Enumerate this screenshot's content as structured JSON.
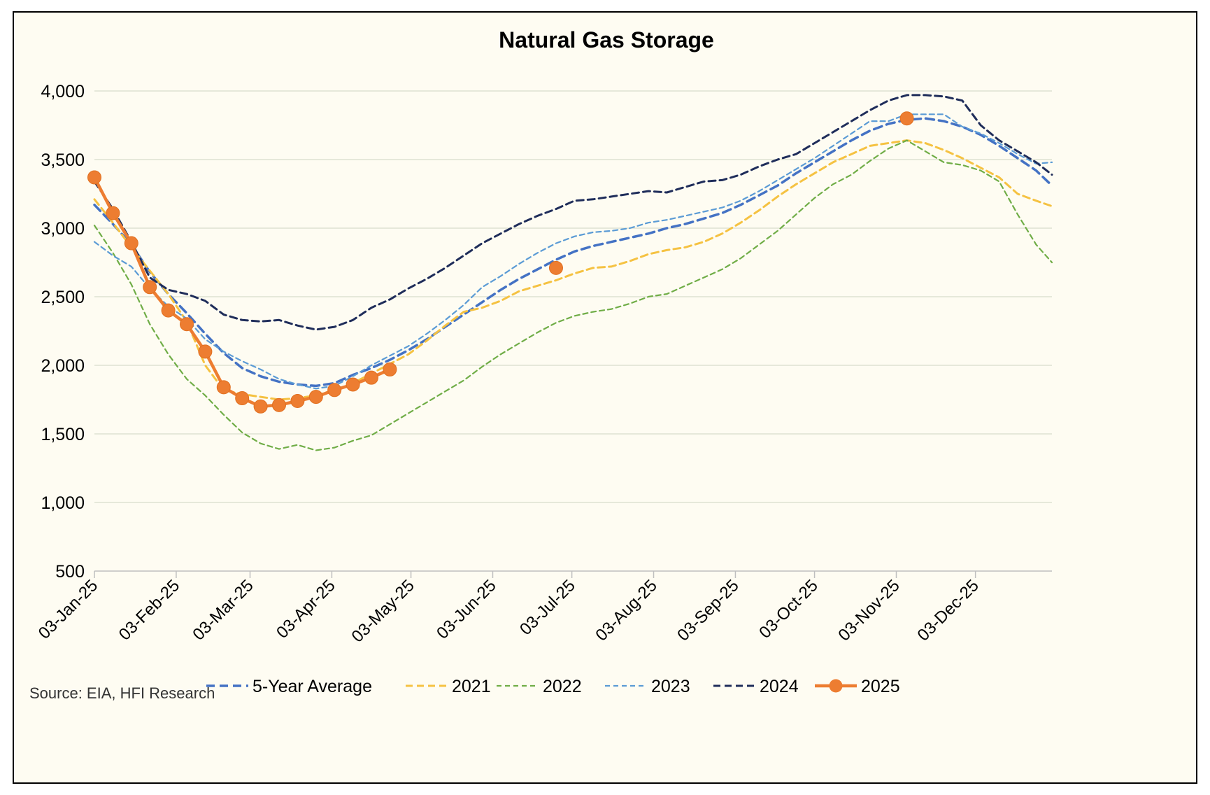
{
  "chart_data": {
    "type": "line",
    "title": "Natural Gas Storage",
    "source": "Source: EIA, HFI Research",
    "y_ticks": [
      "500",
      "1,000",
      "1,500",
      "2,000",
      "2,500",
      "3,000",
      "3,500",
      "4,000"
    ],
    "y_tick_values": [
      500,
      1000,
      1500,
      2000,
      2500,
      3000,
      3500,
      4000
    ],
    "ylim": [
      500,
      4000
    ],
    "x_ticks": [
      "03-Jan-25",
      "03-Feb-25",
      "03-Mar-25",
      "03-Apr-25",
      "03-May-25",
      "03-Jun-25",
      "03-Jul-25",
      "03-Aug-25",
      "03-Sep-25",
      "03-Oct-25",
      "03-Nov-25",
      "03-Dec-25"
    ],
    "x_tick_dates": [
      "2025-01-03",
      "2025-02-03",
      "2025-03-03",
      "2025-04-03",
      "2025-05-03",
      "2025-06-03",
      "2025-07-03",
      "2025-08-03",
      "2025-09-03",
      "2025-10-03",
      "2025-11-03",
      "2025-12-03"
    ],
    "xlim": [
      "2025-01-03",
      "2026-01-01"
    ],
    "grid": true,
    "legend_placement": "bottom",
    "series": [
      {
        "name": "5-Year Average",
        "color": "#4472c4",
        "style": "dashed-thick",
        "x": [
          "2025-01-03",
          "2025-01-10",
          "2025-01-17",
          "2025-01-24",
          "2025-01-31",
          "2025-02-07",
          "2025-02-14",
          "2025-02-21",
          "2025-02-28",
          "2025-03-07",
          "2025-03-14",
          "2025-03-21",
          "2025-03-28",
          "2025-04-04",
          "2025-04-11",
          "2025-04-18",
          "2025-04-25",
          "2025-05-02",
          "2025-05-09",
          "2025-05-16",
          "2025-05-23",
          "2025-05-30",
          "2025-06-06",
          "2025-06-13",
          "2025-06-20",
          "2025-06-27",
          "2025-07-04",
          "2025-07-11",
          "2025-07-18",
          "2025-07-25",
          "2025-08-01",
          "2025-08-08",
          "2025-08-15",
          "2025-08-22",
          "2025-08-29",
          "2025-09-05",
          "2025-09-12",
          "2025-09-19",
          "2025-09-26",
          "2025-10-03",
          "2025-10-10",
          "2025-10-17",
          "2025-10-24",
          "2025-10-31",
          "2025-11-07",
          "2025-11-14",
          "2025-11-21",
          "2025-11-28",
          "2025-12-05",
          "2025-12-12",
          "2025-12-19",
          "2025-12-26",
          "2026-01-01"
        ],
        "values": [
          3170,
          3030,
          2880,
          2680,
          2520,
          2380,
          2230,
          2090,
          1980,
          1920,
          1880,
          1860,
          1850,
          1870,
          1930,
          1980,
          2040,
          2110,
          2190,
          2280,
          2370,
          2460,
          2550,
          2630,
          2700,
          2770,
          2830,
          2870,
          2900,
          2930,
          2960,
          3000,
          3030,
          3070,
          3110,
          3170,
          3240,
          3310,
          3400,
          3480,
          3560,
          3640,
          3710,
          3760,
          3790,
          3800,
          3780,
          3740,
          3680,
          3600,
          3510,
          3420,
          3310
        ]
      },
      {
        "name": "2021",
        "color": "#f5c242",
        "style": "dashed",
        "x": [
          "2025-01-03",
          "2025-01-10",
          "2025-01-17",
          "2025-01-24",
          "2025-01-31",
          "2025-02-07",
          "2025-02-14",
          "2025-02-21",
          "2025-02-28",
          "2025-03-07",
          "2025-03-14",
          "2025-03-21",
          "2025-03-28",
          "2025-04-04",
          "2025-04-11",
          "2025-04-18",
          "2025-04-25",
          "2025-05-02",
          "2025-05-09",
          "2025-05-16",
          "2025-05-23",
          "2025-05-30",
          "2025-06-06",
          "2025-06-13",
          "2025-06-20",
          "2025-06-27",
          "2025-07-04",
          "2025-07-11",
          "2025-07-18",
          "2025-07-25",
          "2025-08-01",
          "2025-08-08",
          "2025-08-15",
          "2025-08-22",
          "2025-08-29",
          "2025-09-05",
          "2025-09-12",
          "2025-09-19",
          "2025-09-26",
          "2025-10-03",
          "2025-10-10",
          "2025-10-17",
          "2025-10-24",
          "2025-10-31",
          "2025-11-07",
          "2025-11-14",
          "2025-11-21",
          "2025-11-28",
          "2025-12-05",
          "2025-12-12",
          "2025-12-19",
          "2025-12-26",
          "2026-01-01"
        ],
        "values": [
          3210,
          3040,
          2860,
          2690,
          2520,
          2320,
          2000,
          1820,
          1790,
          1770,
          1750,
          1760,
          1780,
          1820,
          1870,
          1940,
          2010,
          2080,
          2180,
          2290,
          2390,
          2420,
          2470,
          2540,
          2580,
          2620,
          2670,
          2710,
          2720,
          2760,
          2810,
          2840,
          2860,
          2900,
          2960,
          3040,
          3130,
          3230,
          3320,
          3400,
          3480,
          3540,
          3600,
          3620,
          3640,
          3620,
          3570,
          3510,
          3440,
          3370,
          3250,
          3200,
          3160
        ]
      },
      {
        "name": "2022",
        "color": "#70ad47",
        "style": "dashed-thin",
        "x": [
          "2025-01-03",
          "2025-01-10",
          "2025-01-17",
          "2025-01-24",
          "2025-01-31",
          "2025-02-07",
          "2025-02-14",
          "2025-02-21",
          "2025-02-28",
          "2025-03-07",
          "2025-03-14",
          "2025-03-21",
          "2025-03-28",
          "2025-04-04",
          "2025-04-11",
          "2025-04-18",
          "2025-04-25",
          "2025-05-02",
          "2025-05-09",
          "2025-05-16",
          "2025-05-23",
          "2025-05-30",
          "2025-06-06",
          "2025-06-13",
          "2025-06-20",
          "2025-06-27",
          "2025-07-04",
          "2025-07-11",
          "2025-07-18",
          "2025-07-25",
          "2025-08-01",
          "2025-08-08",
          "2025-08-15",
          "2025-08-22",
          "2025-08-29",
          "2025-09-05",
          "2025-09-12",
          "2025-09-19",
          "2025-09-26",
          "2025-10-03",
          "2025-10-10",
          "2025-10-17",
          "2025-10-24",
          "2025-10-31",
          "2025-11-07",
          "2025-11-14",
          "2025-11-21",
          "2025-11-28",
          "2025-12-05",
          "2025-12-12",
          "2025-12-19",
          "2025-12-26",
          "2026-01-01"
        ],
        "values": [
          3020,
          2820,
          2590,
          2300,
          2080,
          1900,
          1780,
          1640,
          1510,
          1430,
          1390,
          1420,
          1380,
          1400,
          1450,
          1490,
          1570,
          1650,
          1730,
          1810,
          1890,
          1990,
          2080,
          2160,
          2240,
          2310,
          2360,
          2390,
          2410,
          2450,
          2500,
          2520,
          2580,
          2640,
          2700,
          2780,
          2880,
          2980,
          3100,
          3220,
          3320,
          3390,
          3490,
          3580,
          3640,
          3560,
          3480,
          3460,
          3420,
          3340,
          3100,
          2880,
          2750
        ]
      },
      {
        "name": "2023",
        "color": "#5b9bd5",
        "style": "dashed-thin",
        "x": [
          "2025-01-03",
          "2025-01-10",
          "2025-01-17",
          "2025-01-24",
          "2025-01-31",
          "2025-02-07",
          "2025-02-14",
          "2025-02-21",
          "2025-02-28",
          "2025-03-07",
          "2025-03-14",
          "2025-03-21",
          "2025-03-28",
          "2025-04-04",
          "2025-04-11",
          "2025-04-18",
          "2025-04-25",
          "2025-05-02",
          "2025-05-09",
          "2025-05-16",
          "2025-05-23",
          "2025-05-30",
          "2025-06-06",
          "2025-06-13",
          "2025-06-20",
          "2025-06-27",
          "2025-07-04",
          "2025-07-11",
          "2025-07-18",
          "2025-07-25",
          "2025-08-01",
          "2025-08-08",
          "2025-08-15",
          "2025-08-22",
          "2025-08-29",
          "2025-09-05",
          "2025-09-12",
          "2025-09-19",
          "2025-09-26",
          "2025-10-03",
          "2025-10-10",
          "2025-10-17",
          "2025-10-24",
          "2025-10-31",
          "2025-11-07",
          "2025-11-14",
          "2025-11-21",
          "2025-11-28",
          "2025-12-05",
          "2025-12-12",
          "2025-12-19",
          "2025-12-26",
          "2026-01-01"
        ],
        "values": [
          2900,
          2800,
          2720,
          2560,
          2430,
          2340,
          2190,
          2100,
          2030,
          1970,
          1900,
          1860,
          1830,
          1850,
          1920,
          2000,
          2070,
          2140,
          2230,
          2330,
          2440,
          2570,
          2650,
          2740,
          2820,
          2890,
          2940,
          2970,
          2980,
          3000,
          3040,
          3060,
          3090,
          3120,
          3150,
          3200,
          3270,
          3350,
          3430,
          3510,
          3600,
          3690,
          3780,
          3780,
          3830,
          3830,
          3830,
          3740,
          3690,
          3620,
          3540,
          3470,
          3480
        ]
      },
      {
        "name": "2024",
        "color": "#1f2d5a",
        "style": "dashed",
        "x": [
          "2025-01-03",
          "2025-01-10",
          "2025-01-17",
          "2025-01-24",
          "2025-01-31",
          "2025-02-07",
          "2025-02-14",
          "2025-02-21",
          "2025-02-28",
          "2025-03-07",
          "2025-03-14",
          "2025-03-21",
          "2025-03-28",
          "2025-04-04",
          "2025-04-11",
          "2025-04-18",
          "2025-04-25",
          "2025-05-02",
          "2025-05-09",
          "2025-05-16",
          "2025-05-23",
          "2025-05-30",
          "2025-06-06",
          "2025-06-13",
          "2025-06-20",
          "2025-06-27",
          "2025-07-04",
          "2025-07-11",
          "2025-07-18",
          "2025-07-25",
          "2025-08-01",
          "2025-08-08",
          "2025-08-15",
          "2025-08-22",
          "2025-08-29",
          "2025-09-05",
          "2025-09-12",
          "2025-09-19",
          "2025-09-26",
          "2025-10-03",
          "2025-10-10",
          "2025-10-17",
          "2025-10-24",
          "2025-10-31",
          "2025-11-07",
          "2025-11-14",
          "2025-11-21",
          "2025-11-28",
          "2025-12-05",
          "2025-12-12",
          "2025-12-19",
          "2025-12-26",
          "2026-01-01"
        ],
        "values": [
          3340,
          3140,
          2900,
          2640,
          2550,
          2520,
          2470,
          2370,
          2330,
          2320,
          2330,
          2290,
          2260,
          2280,
          2330,
          2420,
          2480,
          2560,
          2630,
          2710,
          2800,
          2890,
          2960,
          3030,
          3090,
          3140,
          3200,
          3210,
          3230,
          3250,
          3270,
          3260,
          3300,
          3340,
          3350,
          3390,
          3450,
          3500,
          3540,
          3620,
          3700,
          3780,
          3860,
          3930,
          3970,
          3970,
          3960,
          3930,
          3750,
          3640,
          3560,
          3480,
          3390
        ]
      },
      {
        "name": "2025",
        "color": "#ed7d31",
        "style": "solid-markers",
        "x": [
          "2025-01-03",
          "2025-01-10",
          "2025-01-17",
          "2025-01-24",
          "2025-01-31",
          "2025-02-07",
          "2025-02-14",
          "2025-02-21",
          "2025-02-28",
          "2025-03-07",
          "2025-03-14",
          "2025-03-21",
          "2025-03-28",
          "2025-04-04",
          "2025-04-11",
          "2025-04-18",
          "2025-04-25"
        ],
        "values": [
          3370,
          3110,
          2890,
          2570,
          2400,
          2300,
          2100,
          1840,
          1760,
          1700,
          1710,
          1740,
          1770,
          1820,
          1860,
          1910,
          1970
        ]
      },
      {
        "name": "2025",
        "legend": false,
        "color": "#ed7d31",
        "style": "markers",
        "x": [
          "2025-06-27",
          "2025-11-07"
        ],
        "values": [
          2710,
          3800
        ]
      }
    ]
  }
}
